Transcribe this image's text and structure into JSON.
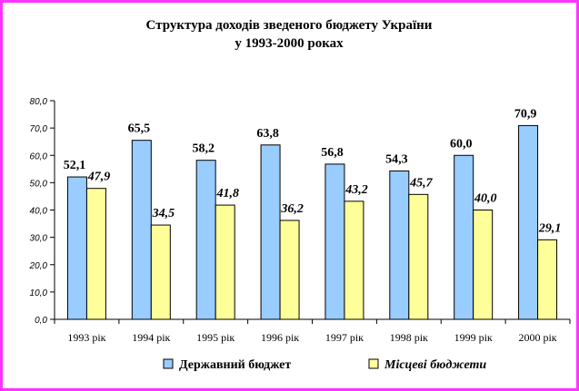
{
  "chart_data": {
    "type": "bar",
    "title": [
      "Структура доходів зведеного бюджету України",
      "у 1993-2000 роках"
    ],
    "categories": [
      "1993 рік",
      "1994 рік",
      "1995 рік",
      "1996 рік",
      "1997 рік",
      "1998 рік",
      "1999 рік",
      "2000 рік"
    ],
    "series": [
      {
        "name": "Державний  бюджет",
        "color": "#99ccff",
        "values": [
          52.1,
          65.5,
          58.2,
          63.8,
          56.8,
          54.3,
          60.0,
          70.9
        ],
        "labels": [
          "52,1",
          "65,5",
          "58,2",
          "63,8",
          "56,8",
          "54,3",
          "60,0",
          "70,9"
        ]
      },
      {
        "name": "Місцеві бюджети",
        "color": "#ffff99",
        "values": [
          47.9,
          34.5,
          41.8,
          36.2,
          43.2,
          45.7,
          40.0,
          29.1
        ],
        "labels": [
          "47,9",
          "34,5",
          "41,8",
          "36,2",
          "43,2",
          "45,7",
          "40,0",
          "29,1"
        ]
      }
    ],
    "ylim": [
      0,
      80
    ],
    "yticks": [
      0,
      10,
      20,
      30,
      40,
      50,
      60,
      70,
      80
    ],
    "ytick_labels": [
      "0,0",
      "10,0",
      "20,0",
      "30,0",
      "40,0",
      "50,0",
      "60,0",
      "70,0",
      "80,0"
    ],
    "grid": false,
    "legend_position": "bottom"
  }
}
